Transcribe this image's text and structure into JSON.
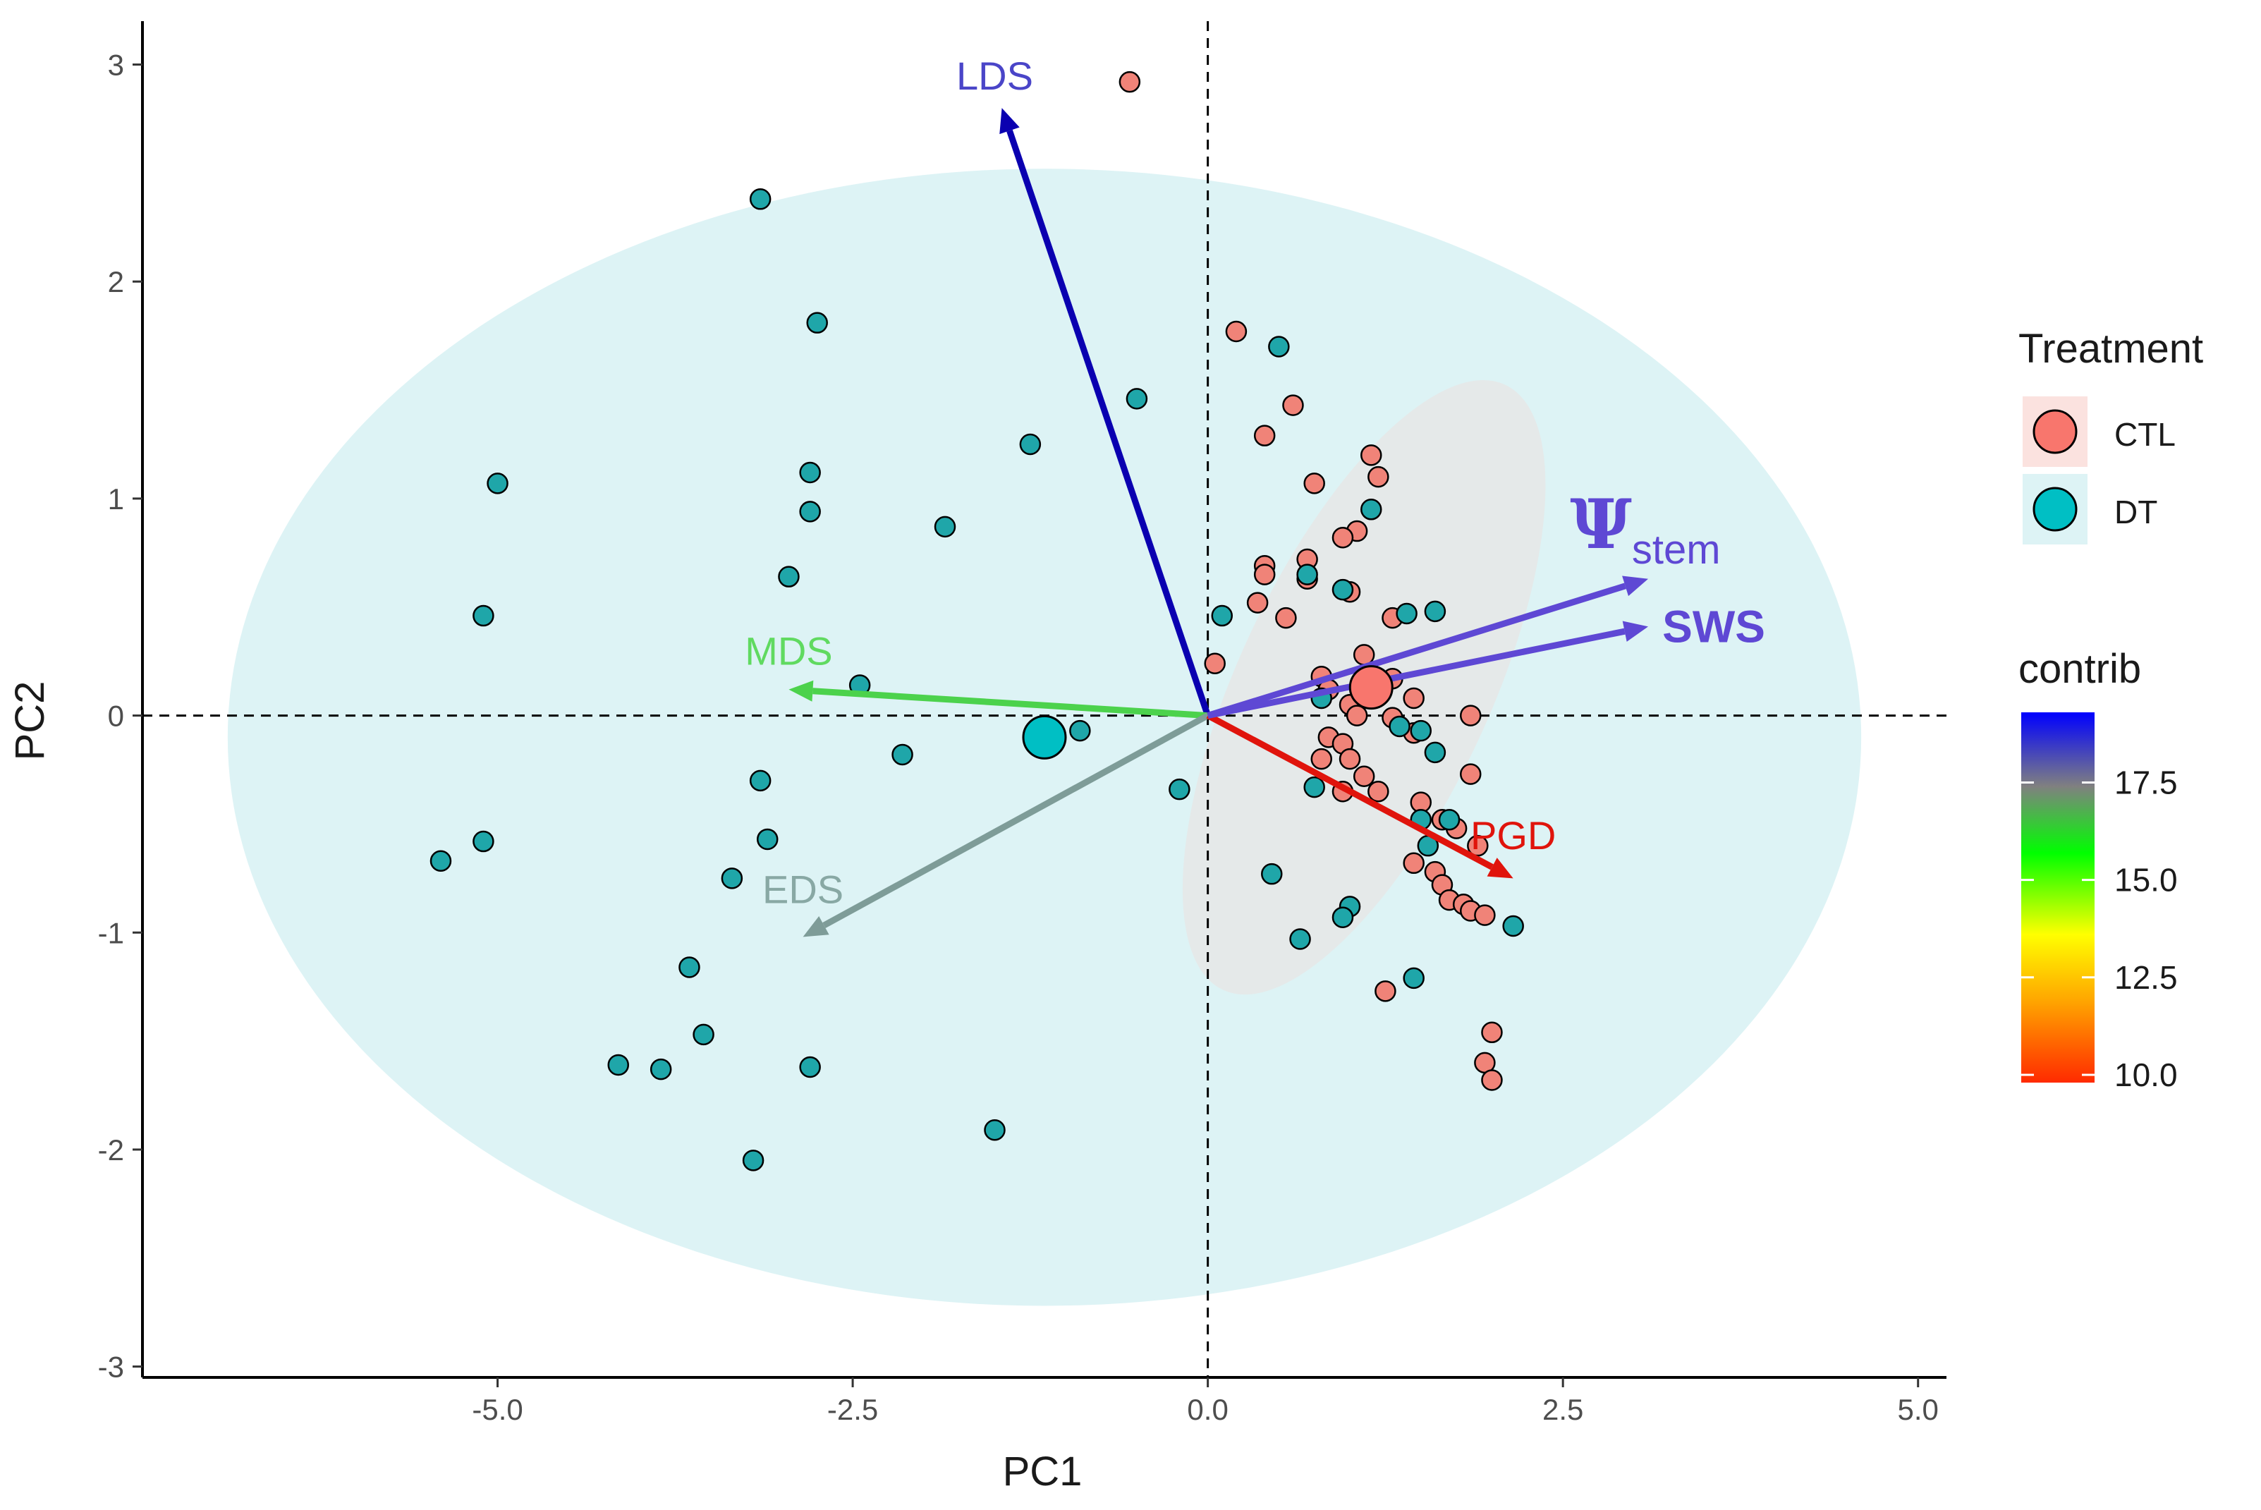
{
  "chart_data": {
    "type": "scatter",
    "subtype": "pca-biplot",
    "xlabel": "PC1",
    "ylabel": "PC2",
    "xlim": [
      -7.5,
      5.2
    ],
    "ylim": [
      -3.05,
      3.2
    ],
    "x_ticks": [
      -5.0,
      -2.5,
      0.0,
      2.5,
      5.0
    ],
    "x_tick_labels": [
      "-5.0",
      "-2.5",
      "0.0",
      "2.5",
      "5.0"
    ],
    "y_ticks": [
      -3,
      -2,
      -1,
      0,
      1,
      2,
      3
    ],
    "y_tick_labels": [
      "-3",
      "-2",
      "-1",
      "0",
      "1",
      "2",
      "3"
    ],
    "grid": false,
    "reference_lines": {
      "x": 0,
      "y": 0,
      "style": "dashed"
    },
    "legend_treatment": {
      "title": "Treatment",
      "position": "right",
      "items": [
        {
          "label": "CTL",
          "color": "#F8766D"
        },
        {
          "label": "DT",
          "color": "#00BFC4"
        }
      ]
    },
    "legend_contrib": {
      "title": "contrib",
      "min": 9.8,
      "max": 19.3,
      "ticks": [
        10.0,
        12.5,
        15.0,
        17.5
      ],
      "tick_labels": [
        "10.0",
        "12.5",
        "15.0",
        "17.5"
      ],
      "colors": [
        "#FF2A00",
        "#FFA500",
        "#FFFF00",
        "#00FF00",
        "#808080",
        "#0000FF"
      ]
    },
    "ellipses": [
      {
        "group": "DT",
        "cx": -1.15,
        "cy": -0.1,
        "rx": 5.75,
        "ry": 2.62,
        "angle_deg": 0,
        "color": "#DDF3F5"
      },
      {
        "group": "CTL",
        "cx": 1.1,
        "cy": 0.13,
        "rx": 2.35,
        "ry": 0.58,
        "angle_deg": -65,
        "color": "#E5E9E9"
      }
    ],
    "variables": [
      {
        "name": "LDS",
        "x": -1.45,
        "y": 2.8,
        "color": "#0A00B0",
        "label_color": "#4A45C8",
        "label_x": -1.5,
        "label_y": 2.95
      },
      {
        "name": "MDS",
        "x": -2.95,
        "y": 0.12,
        "color": "#4CD24C",
        "label_color": "#60DA60",
        "label_x": -2.95,
        "label_y": 0.3
      },
      {
        "name": "EDS",
        "x": -2.85,
        "y": -1.02,
        "color": "#7E9C98",
        "label_color": "#88A8A4",
        "label_x": -2.85,
        "label_y": -0.8
      },
      {
        "name": "PGD",
        "x": 2.15,
        "y": -0.75,
        "color": "#E0140C",
        "label_color": "#E0140C",
        "label_x": 2.15,
        "label_y": -0.55
      },
      {
        "name": "SWS",
        "x": 3.1,
        "y": 0.41,
        "color": "#5E48D4",
        "label_color": "#5E48D4",
        "label_x": 3.2,
        "label_y": 0.41
      },
      {
        "name": "Ψ",
        "subscript": "stem",
        "x": 3.1,
        "y": 0.63,
        "color": "#5E48D4",
        "label_color": "#5E48D4",
        "label_x": 2.55,
        "label_y": 0.87
      }
    ],
    "centroids": [
      {
        "group": "CTL",
        "x": 1.15,
        "y": 0.13
      },
      {
        "group": "DT",
        "x": -1.15,
        "y": -0.1
      }
    ],
    "series": [
      {
        "name": "CTL",
        "color": "#F08378",
        "points": [
          [
            -0.55,
            2.92
          ],
          [
            0.2,
            1.77
          ],
          [
            0.6,
            1.43
          ],
          [
            0.4,
            1.29
          ],
          [
            1.15,
            1.2
          ],
          [
            1.2,
            1.1
          ],
          [
            0.75,
            1.07
          ],
          [
            1.05,
            0.85
          ],
          [
            0.95,
            0.82
          ],
          [
            0.7,
            0.72
          ],
          [
            0.4,
            0.69
          ],
          [
            0.4,
            0.65
          ],
          [
            0.7,
            0.63
          ],
          [
            1.0,
            0.57
          ],
          [
            0.35,
            0.52
          ],
          [
            1.3,
            0.45
          ],
          [
            0.55,
            0.45
          ],
          [
            1.1,
            0.28
          ],
          [
            0.05,
            0.24
          ],
          [
            0.8,
            0.18
          ],
          [
            1.3,
            0.17
          ],
          [
            0.85,
            0.12
          ],
          [
            1.45,
            0.08
          ],
          [
            1.0,
            0.05
          ],
          [
            1.85,
            0.0
          ],
          [
            1.05,
            0.0
          ],
          [
            1.3,
            -0.01
          ],
          [
            0.85,
            -0.1
          ],
          [
            0.95,
            -0.13
          ],
          [
            1.45,
            -0.08
          ],
          [
            0.8,
            -0.2
          ],
          [
            1.0,
            -0.2
          ],
          [
            1.1,
            -0.28
          ],
          [
            1.85,
            -0.27
          ],
          [
            0.95,
            -0.35
          ],
          [
            1.2,
            -0.35
          ],
          [
            1.5,
            -0.4
          ],
          [
            1.65,
            -0.48
          ],
          [
            1.75,
            -0.52
          ],
          [
            1.9,
            -0.6
          ],
          [
            1.45,
            -0.68
          ],
          [
            1.6,
            -0.72
          ],
          [
            1.65,
            -0.78
          ],
          [
            1.7,
            -0.85
          ],
          [
            1.8,
            -0.87
          ],
          [
            1.85,
            -0.9
          ],
          [
            1.95,
            -0.92
          ],
          [
            1.25,
            -1.27
          ],
          [
            2.0,
            -1.46
          ],
          [
            1.95,
            -1.6
          ],
          [
            2.0,
            -1.68
          ]
        ]
      },
      {
        "name": "DT",
        "color": "#1FA6A9",
        "points": [
          [
            -3.15,
            2.38
          ],
          [
            -2.75,
            1.81
          ],
          [
            0.5,
            1.7
          ],
          [
            -0.5,
            1.46
          ],
          [
            -1.25,
            1.25
          ],
          [
            -5.0,
            1.07
          ],
          [
            -2.8,
            1.12
          ],
          [
            -2.8,
            0.94
          ],
          [
            -1.85,
            0.87
          ],
          [
            1.15,
            0.95
          ],
          [
            -5.1,
            0.46
          ],
          [
            -2.95,
            0.64
          ],
          [
            0.7,
            0.65
          ],
          [
            0.95,
            0.58
          ],
          [
            0.1,
            0.46
          ],
          [
            1.4,
            0.47
          ],
          [
            1.6,
            0.48
          ],
          [
            -2.45,
            0.14
          ],
          [
            0.8,
            0.08
          ],
          [
            -0.9,
            -0.07
          ],
          [
            1.35,
            -0.05
          ],
          [
            1.5,
            -0.07
          ],
          [
            -2.15,
            -0.18
          ],
          [
            1.6,
            -0.17
          ],
          [
            -3.15,
            -0.3
          ],
          [
            0.75,
            -0.33
          ],
          [
            -0.2,
            -0.34
          ],
          [
            -3.1,
            -0.57
          ],
          [
            -5.1,
            -0.58
          ],
          [
            -5.4,
            -0.67
          ],
          [
            1.5,
            -0.48
          ],
          [
            1.7,
            -0.48
          ],
          [
            1.55,
            -0.6
          ],
          [
            -3.35,
            -0.75
          ],
          [
            0.45,
            -0.73
          ],
          [
            1.0,
            -0.88
          ],
          [
            0.95,
            -0.93
          ],
          [
            2.15,
            -0.97
          ],
          [
            0.65,
            -1.03
          ],
          [
            -3.65,
            -1.16
          ],
          [
            1.45,
            -1.21
          ],
          [
            -3.55,
            -1.47
          ],
          [
            -4.15,
            -1.61
          ],
          [
            -3.85,
            -1.63
          ],
          [
            -2.8,
            -1.62
          ],
          [
            -1.5,
            -1.91
          ],
          [
            -3.2,
            -2.05
          ]
        ]
      }
    ]
  }
}
